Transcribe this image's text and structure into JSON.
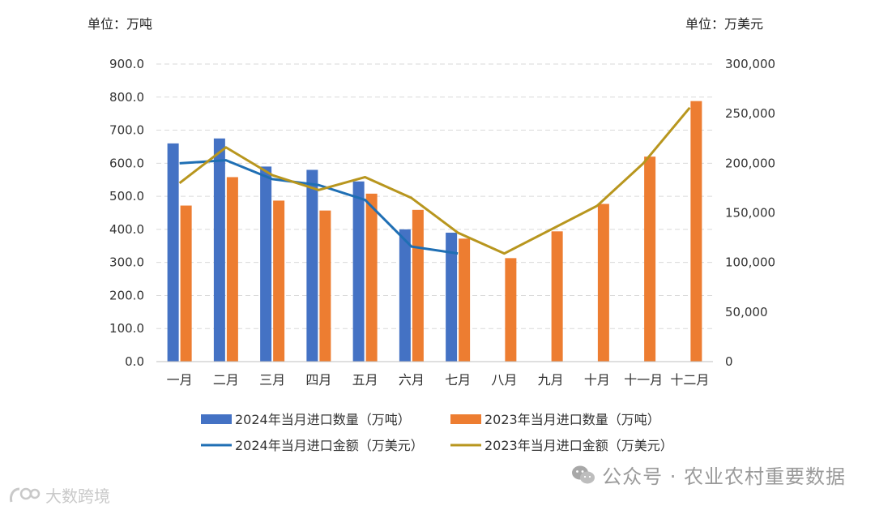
{
  "chart_data": {
    "type": "bar-line",
    "categories": [
      "一月",
      "二月",
      "三月",
      "四月",
      "五月",
      "六月",
      "七月",
      "八月",
      "九月",
      "十月",
      "十一月",
      "十二月"
    ],
    "left_axis": {
      "unit_label": "单位：万吨",
      "ylim": [
        0,
        900
      ],
      "ticks": [
        "0.0",
        "100.0",
        "200.0",
        "300.0",
        "400.0",
        "500.0",
        "600.0",
        "700.0",
        "800.0",
        "900.0"
      ],
      "tick_values": [
        0,
        100,
        200,
        300,
        400,
        500,
        600,
        700,
        800,
        900
      ]
    },
    "right_axis": {
      "unit_label": "单位：万美元",
      "ylim": [
        0,
        300000
      ],
      "ticks": [
        "0",
        "50,000",
        "100,000",
        "150,000",
        "200,000",
        "250,000",
        "300,000"
      ],
      "tick_values": [
        0,
        50000,
        100000,
        150000,
        200000,
        250000,
        300000
      ]
    },
    "grid": "horizontal-dashed",
    "legend_placement": "bottom",
    "series": [
      {
        "name": "2024年当月进口数量（万吨）",
        "kind": "bar",
        "axis": "left",
        "color": "#4472C4",
        "values": [
          660,
          675,
          590,
          580,
          545,
          400,
          390,
          null,
          null,
          null,
          null,
          null
        ]
      },
      {
        "name": "2023年当月进口数量（万吨）",
        "kind": "bar",
        "axis": "left",
        "color": "#ED7D31",
        "values": [
          472,
          558,
          487,
          457,
          508,
          459,
          372,
          313,
          394,
          477,
          620,
          788
        ]
      },
      {
        "name": "2024年当月进口金额（万美元）",
        "kind": "line",
        "axis": "right",
        "color": "#1F6FB4",
        "values": [
          200000,
          203000,
          184000,
          178000,
          163000,
          116000,
          109000,
          null,
          null,
          null,
          null,
          null
        ]
      },
      {
        "name": "2023年当月进口金额（万美元）",
        "kind": "line",
        "axis": "right",
        "color": "#B8961E",
        "values": [
          180000,
          216000,
          188000,
          173000,
          186000,
          165000,
          130000,
          109000,
          133000,
          157000,
          200000,
          256000
        ]
      }
    ]
  },
  "watermark": {
    "brand": "公众号 · 农业农村重要数据",
    "source": "大数跨境"
  },
  "icons": {
    "wechat": "wechat-icon",
    "logo": "dashujuajing-logo-icon"
  }
}
